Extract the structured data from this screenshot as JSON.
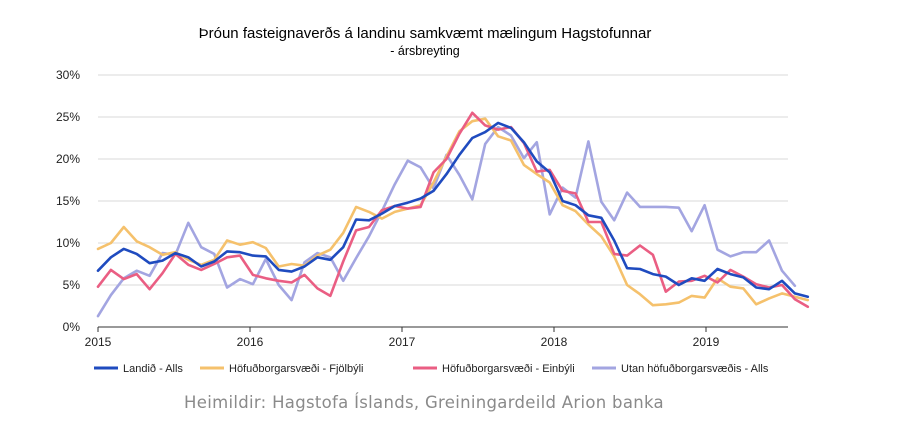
{
  "chart_data": {
    "type": "line",
    "title": "Þróun fasteignaverðs á landinu samkvæmt mælingum Hagstofunnar",
    "subtitle": "- ársbreyting",
    "source": "Heimildir: Hagstofa Íslands, Greiningardeild Arion banka",
    "y_ticks": [
      "0%",
      "5%",
      "10%",
      "15%",
      "20%",
      "25%",
      "30%"
    ],
    "x_ticks": [
      "2015",
      "2016",
      "2017",
      "2018",
      "2019"
    ],
    "ylim": [
      0,
      30
    ],
    "x_start": 2015,
    "x_end": 2019.5,
    "grid": true,
    "legend_position": "bottom",
    "series": [
      {
        "name": "Landið - Alls",
        "color": "#1f4bbf",
        "values": [
          6.7,
          8.3,
          9.3,
          8.7,
          7.6,
          7.9,
          8.8,
          8.3,
          7.2,
          7.8,
          9.0,
          8.9,
          8.5,
          8.4,
          6.8,
          6.6,
          7.2,
          8.3,
          8.0,
          9.5,
          12.8,
          12.7,
          13.5,
          14.4,
          14.8,
          15.3,
          16.2,
          18.2,
          20.5,
          22.5,
          23.2,
          24.3,
          23.7,
          22.0,
          19.7,
          18.4,
          15.0,
          14.5,
          13.3,
          13.0,
          10.3,
          7.0,
          6.9,
          6.3,
          6.0,
          5.0,
          5.8,
          5.5,
          6.9,
          6.3,
          5.9,
          4.7,
          4.5,
          5.5,
          4.0,
          3.6
        ]
      },
      {
        "name": "Höfuðborgarsvæði - Fjölbýli",
        "color": "#f5c16c",
        "values": [
          9.3,
          10.0,
          11.9,
          10.2,
          9.5,
          8.6,
          8.9,
          8.0,
          7.4,
          8.0,
          10.3,
          9.8,
          10.1,
          9.4,
          7.2,
          7.5,
          7.3,
          8.5,
          9.2,
          11.2,
          14.3,
          13.7,
          12.9,
          13.7,
          14.1,
          14.5,
          17.2,
          20.3,
          23.3,
          24.5,
          24.8,
          22.7,
          22.2,
          19.3,
          18.2,
          17.2,
          14.5,
          13.8,
          12.2,
          10.8,
          8.4,
          5.0,
          3.9,
          2.6,
          2.7,
          2.9,
          3.7,
          3.5,
          5.8,
          4.8,
          4.6,
          2.7,
          3.4,
          4.0,
          3.6,
          3.2
        ]
      },
      {
        "name": "Höfuðborgarsvæði - Einbýli",
        "color": "#ea5e83",
        "values": [
          4.8,
          6.8,
          5.7,
          6.3,
          4.5,
          6.4,
          8.7,
          7.4,
          6.8,
          7.5,
          8.3,
          8.5,
          6.2,
          5.8,
          5.5,
          5.3,
          6.2,
          4.6,
          3.7,
          7.8,
          11.5,
          11.9,
          13.9,
          14.4,
          14.1,
          14.3,
          18.4,
          20.0,
          23.0,
          25.5,
          24.0,
          23.5,
          23.8,
          21.9,
          18.5,
          18.7,
          16.2,
          15.9,
          12.5,
          12.5,
          8.7,
          8.5,
          9.7,
          8.6,
          4.2,
          5.4,
          5.5,
          6.1,
          5.3,
          6.8,
          6.0,
          5.1,
          4.7,
          5.0,
          3.3,
          2.4
        ]
      },
      {
        "name": "Utan höfuðborgarsvæðis - Alls",
        "color": "#a3a5e1",
        "values": [
          1.3,
          3.8,
          5.8,
          6.7,
          6.1,
          8.8,
          8.6,
          12.4,
          9.5,
          8.7,
          4.7,
          5.7,
          5.1,
          8.1,
          5.0,
          3.2,
          7.7,
          8.8,
          8.3,
          5.5,
          8.2,
          10.8,
          13.8,
          17.0,
          19.8,
          19.0,
          16.5,
          20.5,
          18.1,
          15.2,
          21.8,
          23.8,
          22.8,
          20.1,
          22.0,
          13.4,
          16.6,
          15.4,
          22.1,
          14.9,
          12.7,
          16.0,
          14.3,
          14.3,
          14.3,
          14.2,
          11.4,
          14.5,
          9.2,
          8.4,
          8.9,
          8.9,
          10.3,
          6.7,
          4.9
        ]
      }
    ]
  }
}
